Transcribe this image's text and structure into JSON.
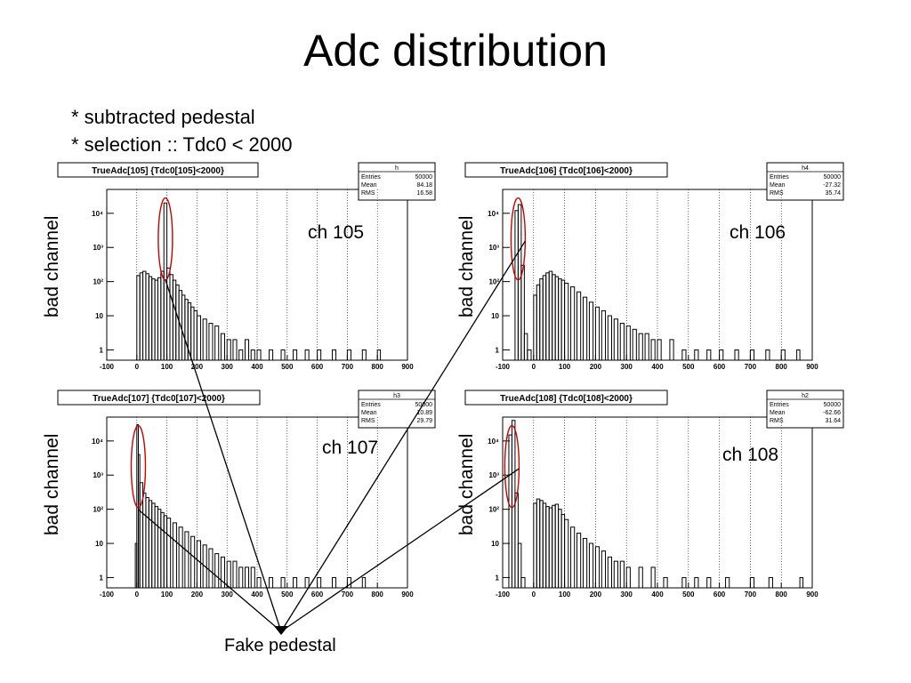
{
  "slide": {
    "title": "Adc distribution",
    "bullets": [
      "* subtracted pedestal",
      "* selection :: Tdc0 < 2000"
    ],
    "fake_pedestal_label": "Fake pedestal",
    "bad_channel_label": "bad channel",
    "highlight_color": "#cc0000",
    "line_color": "#000000"
  },
  "chart_data": [
    {
      "type": "histogram",
      "title": "TrueAdc[105] {Tdc0[105]<2000}",
      "channel_label": "ch 105",
      "bad_channel": true,
      "stats": {
        "name": "h",
        "rows": [
          [
            "Entries",
            "50000"
          ],
          [
            "Mean",
            "84.18"
          ],
          [
            "RMS",
            "16.58"
          ]
        ]
      },
      "xlim": [
        -100,
        900
      ],
      "xticks": [
        "-100",
        "0",
        "100",
        "200",
        "300",
        "400",
        "500",
        "600",
        "700",
        "800",
        "900"
      ],
      "y_log": true,
      "ylim": [
        0.5,
        50000
      ],
      "yticks": [
        "1",
        "10",
        "10²",
        "10³",
        "10⁴"
      ],
      "grid_x": true,
      "highlight_x": 95,
      "x": [
        0,
        10,
        20,
        30,
        40,
        50,
        60,
        70,
        80,
        90,
        100,
        110,
        120,
        130,
        140,
        150,
        160,
        170,
        180,
        190,
        200,
        220,
        240,
        260,
        280,
        300,
        320,
        340,
        360,
        380,
        400,
        440,
        480,
        520,
        560,
        600,
        650,
        700,
        750,
        800
      ],
      "values": [
        150,
        180,
        200,
        170,
        140,
        120,
        110,
        130,
        200,
        20000,
        250,
        160,
        110,
        80,
        55,
        40,
        30,
        24,
        18,
        14,
        10,
        8,
        6,
        5,
        3,
        2,
        2,
        1,
        2,
        1,
        1,
        1,
        1,
        1,
        1,
        1,
        1,
        1,
        1,
        1
      ]
    },
    {
      "type": "histogram",
      "title": "TrueAdc[106] {Tdc0[106]<2000}",
      "channel_label": "ch 106",
      "bad_channel": true,
      "stats": {
        "name": "h4",
        "rows": [
          [
            "Entries",
            "50000"
          ],
          [
            "Mean",
            "-27.32"
          ],
          [
            "RMS",
            "35.74"
          ]
        ]
      },
      "xlim": [
        -100,
        900
      ],
      "xticks": [
        "-100",
        "0",
        "100",
        "200",
        "300",
        "400",
        "500",
        "600",
        "700",
        "800",
        "900"
      ],
      "y_log": true,
      "ylim": [
        0.5,
        50000
      ],
      "yticks": [
        "1",
        "10",
        "10²",
        "10³",
        "10⁴"
      ],
      "grid_x": true,
      "highlight_x": -50,
      "x": [
        -60,
        -50,
        -40,
        -30,
        -20,
        0,
        10,
        20,
        30,
        40,
        50,
        60,
        70,
        80,
        90,
        100,
        120,
        140,
        160,
        180,
        200,
        220,
        240,
        260,
        280,
        300,
        320,
        340,
        360,
        380,
        400,
        440,
        480,
        520,
        560,
        600,
        650,
        700,
        750,
        800,
        850
      ],
      "values": [
        12000,
        18000,
        300,
        3,
        1,
        40,
        80,
        120,
        150,
        180,
        200,
        160,
        140,
        120,
        110,
        90,
        70,
        50,
        35,
        25,
        18,
        14,
        10,
        8,
        6,
        5,
        4,
        3,
        3,
        2,
        2,
        2,
        1,
        1,
        1,
        1,
        1,
        1,
        1,
        1,
        1
      ]
    },
    {
      "type": "histogram",
      "title": "TrueAdc[107] {Tdc0[107]<2000}",
      "channel_label": "ch 107",
      "bad_channel": true,
      "stats": {
        "name": "h3",
        "rows": [
          [
            "Entries",
            "50000"
          ],
          [
            "Mean",
            "10.89"
          ],
          [
            "RMS",
            "29.79"
          ]
        ]
      },
      "xlim": [
        -100,
        900
      ],
      "xticks": [
        "-100",
        "0",
        "100",
        "200",
        "300",
        "400",
        "500",
        "600",
        "700",
        "800",
        "900"
      ],
      "y_log": true,
      "ylim": [
        0.5,
        50000
      ],
      "yticks": [
        "1",
        "10",
        "10²",
        "10³",
        "10⁴"
      ],
      "grid_x": true,
      "highlight_x": 5,
      "x": [
        -5,
        0,
        5,
        10,
        20,
        30,
        40,
        50,
        60,
        70,
        80,
        90,
        100,
        120,
        140,
        160,
        180,
        200,
        220,
        240,
        260,
        280,
        300,
        320,
        340,
        360,
        380,
        400,
        440,
        480,
        520,
        560,
        600,
        650,
        700,
        750
      ],
      "values": [
        10,
        30000,
        4000,
        600,
        300,
        220,
        180,
        150,
        120,
        100,
        80,
        65,
        55,
        40,
        30,
        22,
        16,
        12,
        9,
        7,
        5,
        4,
        3,
        3,
        2,
        2,
        2,
        1,
        1,
        1,
        1,
        1,
        1,
        1,
        1,
        1
      ]
    },
    {
      "type": "histogram",
      "title": "TrueAdc[108] {Tdc0[108]<2000}",
      "channel_label": "ch 108",
      "bad_channel": true,
      "stats": {
        "name": "h2",
        "rows": [
          [
            "Entries",
            "50000"
          ],
          [
            "Mean",
            "-62.66"
          ],
          [
            "RMS",
            "31.64"
          ]
        ]
      },
      "xlim": [
        -100,
        900
      ],
      "xticks": [
        "-100",
        "0",
        "100",
        "200",
        "300",
        "400",
        "500",
        "600",
        "700",
        "800",
        "900"
      ],
      "y_log": true,
      "ylim": [
        0.5,
        50000
      ],
      "yticks": [
        "1",
        "10",
        "10²",
        "10³",
        "10⁴"
      ],
      "grid_x": true,
      "highlight_x": -70,
      "x": [
        -80,
        -70,
        -60,
        -50,
        -40,
        0,
        10,
        20,
        30,
        40,
        50,
        60,
        70,
        80,
        90,
        100,
        120,
        140,
        160,
        180,
        200,
        220,
        240,
        260,
        280,
        300,
        340,
        380,
        420,
        480,
        520,
        560,
        620,
        700,
        760,
        860
      ],
      "values": [
        15000,
        40000,
        300,
        10,
        1,
        150,
        200,
        180,
        150,
        120,
        110,
        130,
        140,
        100,
        70,
        50,
        30,
        20,
        14,
        10,
        8,
        6,
        4,
        3,
        3,
        2,
        2,
        2,
        1,
        1,
        1,
        1,
        1,
        1,
        1,
        1
      ]
    }
  ]
}
